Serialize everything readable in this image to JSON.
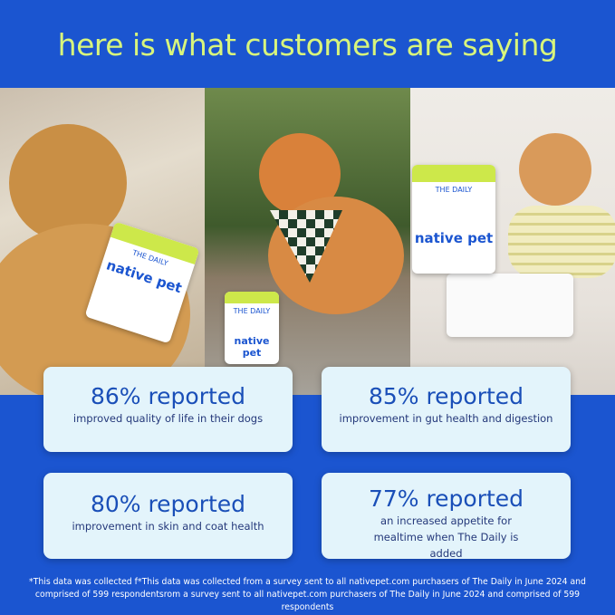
{
  "headline": "here is what customers are saying",
  "colors": {
    "background": "#1b55d0",
    "headline": "#d8f57c",
    "card": "#e3f4fb",
    "card_text": "#1a4fb8"
  },
  "product": {
    "name": "THE DAILY",
    "brand": "native pet"
  },
  "stats": [
    {
      "value": "86% reported",
      "description": "improved quality of life in their dogs"
    },
    {
      "value": "85% reported",
      "description": "improvement in gut health and digestion"
    },
    {
      "value": "80% reported",
      "description": "improvement in skin and coat health"
    },
    {
      "value": "77% reported",
      "description": "an increased appetite for mealtime when The Daily is added"
    }
  ],
  "footnote": "*This data was collected f*This data was collected from a survey sent to all nativepet.com purchasers of The Daily in June 2024 and comprised of 599 respondentsrom a survey sent to all nativepet.com purchasers of The Daily in June 2024 and comprised of 599 respondents"
}
